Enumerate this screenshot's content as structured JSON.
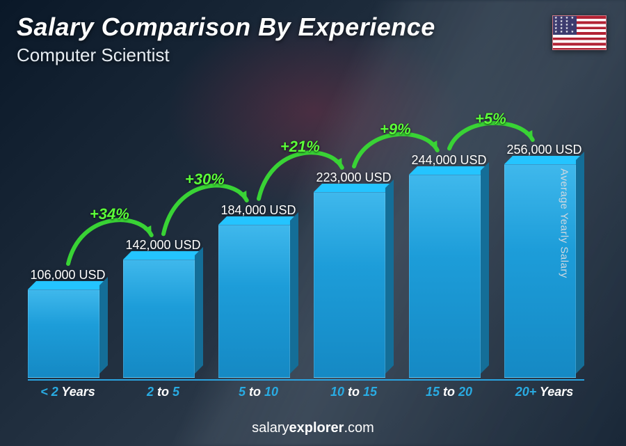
{
  "title": "Salary Comparison By Experience",
  "subtitle": "Computer Scientist",
  "flag": "us",
  "y_axis_label": "Average Yearly Salary",
  "footer_brand_light": "salary",
  "footer_brand_bold": "explorer",
  "footer_brand_suffix": ".com",
  "chart": {
    "type": "bar",
    "max_value": 256000,
    "bar_fill": "#1d9dd9",
    "bar_fill_gradient_top": "#3fb8ec",
    "bar_fill_gradient_bottom": "#1589c4",
    "axis_color": "#2aa3e0",
    "value_fontsize": 18,
    "xlabel_fontsize": 18,
    "xlabel_accent_color": "#29abe2",
    "xlabel_text_color": "#ffffff",
    "arc_color": "#39d335",
    "arc_label_color": "#5cff3a",
    "arc_label_fontsize": 22,
    "background": "dark-photo",
    "bars": [
      {
        "value": 106000,
        "value_label": "106,000 USD",
        "xlabel_a": "< 2",
        "xlabel_b": " Years"
      },
      {
        "value": 142000,
        "value_label": "142,000 USD",
        "xlabel_a": "2",
        "xlabel_b": " to ",
        "xlabel_c": "5"
      },
      {
        "value": 184000,
        "value_label": "184,000 USD",
        "xlabel_a": "5",
        "xlabel_b": " to ",
        "xlabel_c": "10"
      },
      {
        "value": 223000,
        "value_label": "223,000 USD",
        "xlabel_a": "10",
        "xlabel_b": " to ",
        "xlabel_c": "15"
      },
      {
        "value": 244000,
        "value_label": "244,000 USD",
        "xlabel_a": "15",
        "xlabel_b": " to ",
        "xlabel_c": "20"
      },
      {
        "value": 256000,
        "value_label": "256,000 USD",
        "xlabel_a": "20+",
        "xlabel_b": " Years"
      }
    ],
    "deltas": [
      {
        "from": 0,
        "to": 1,
        "label": "+34%"
      },
      {
        "from": 1,
        "to": 2,
        "label": "+30%"
      },
      {
        "from": 2,
        "to": 3,
        "label": "+21%"
      },
      {
        "from": 3,
        "to": 4,
        "label": "+9%"
      },
      {
        "from": 4,
        "to": 5,
        "label": "+5%"
      }
    ]
  }
}
